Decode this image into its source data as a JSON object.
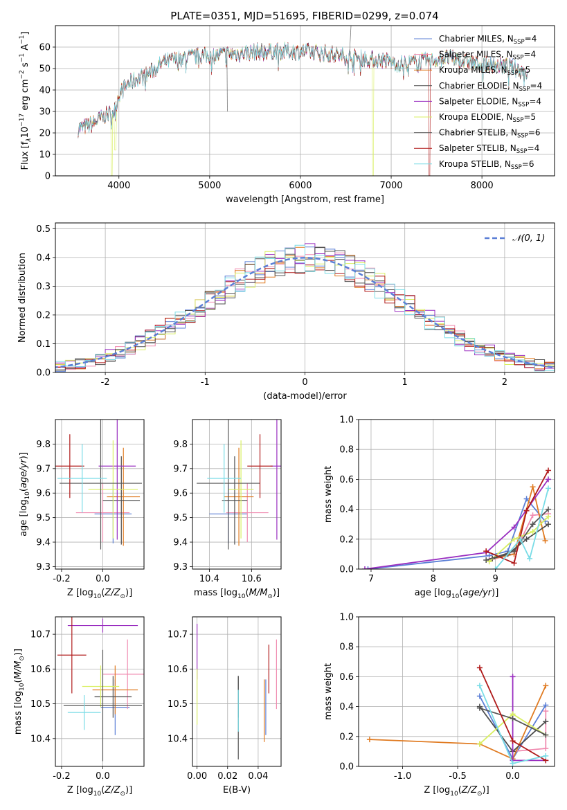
{
  "figure_title": "PLATE=0351, MJD=51695, FIBERID=0299, z=0.074",
  "colors": {
    "Chabrier MILES": "#5b7fd6",
    "Salpeter MILES": "#f08bb0",
    "Kroupa MILES": "#e07b22",
    "Chabrier ELODIE": "#4e4e4e",
    "Salpeter ELODIE": "#9a2fc0",
    "Kroupa ELODIE": "#d9ef62",
    "Chabrier STELIB": "#555555",
    "Salpeter STELIB": "#b01a1a",
    "Kroupa STELIB": "#79dce6"
  },
  "chart_data": [
    {
      "id": "spectrum",
      "type": "line",
      "title": "PLATE=0351, MJD=51695, FIBERID=0299, z=0.074",
      "xlabel": "wavelength [Angstrom, rest frame]",
      "ylabel_main": "Flux [f",
      "ylabel_tail": "10",
      "ylabel_unit": " erg cm",
      "ylabel_unit2": " s",
      "ylabel_unit3": " A",
      "xlim": [
        3300,
        8800
      ],
      "ylim": [
        0,
        70
      ],
      "xticks": [
        4000,
        5000,
        6000,
        7000,
        8000
      ],
      "yticks": [
        0,
        10,
        20,
        30,
        40,
        50,
        60
      ],
      "legend_position": "top-right",
      "legend": [
        {
          "label": "Chabrier MILES, N",
          "n": "4"
        },
        {
          "label": "Salpeter MILES, N",
          "n": "4"
        },
        {
          "label": "Kroupa MILES, N",
          "n": "5"
        },
        {
          "label": "Chabrier ELODIE, N",
          "n": "4"
        },
        {
          "label": "Salpeter ELODIE, N",
          "n": "4"
        },
        {
          "label": "Kroupa ELODIE, N",
          "n": "5"
        },
        {
          "label": "Chabrier STELIB, N",
          "n": "6"
        },
        {
          "label": "Salpeter STELIB, N",
          "n": "4"
        },
        {
          "label": "Kroupa STELIB, N",
          "n": "6"
        }
      ],
      "legend_sub": "SSP",
      "continuum": {
        "x": [
          3550,
          3700,
          3850,
          3950,
          4000,
          4100,
          4300,
          4500,
          4700,
          5000,
          5300,
          5600,
          6000,
          6300,
          6600,
          6900,
          7100,
          7300,
          7600,
          8000,
          8300,
          8500
        ],
        "y": [
          22,
          24,
          28,
          30,
          38,
          43,
          47,
          53,
          55,
          56,
          57,
          58,
          58,
          57,
          55,
          54,
          52,
          53,
          55,
          52,
          51,
          48
        ]
      }
    },
    {
      "id": "residuals",
      "type": "step",
      "xlabel": "(data-model)/error",
      "ylabel": "Normed distribution",
      "xlim": [
        -2.5,
        2.5
      ],
      "ylim": [
        0,
        0.52
      ],
      "xticks": [
        -2,
        -1,
        0,
        1,
        2
      ],
      "yticks": [
        0.0,
        0.1,
        0.2,
        0.3,
        0.4,
        0.5
      ],
      "legend_position": "top-right",
      "legend": [
        "𝒩(0, 1)"
      ],
      "bin_width": 0.1
    },
    {
      "id": "age_vs_Z",
      "type": "errorbar",
      "xlabel": "Z [log",
      "ylabel": "age  [log",
      "xlim": [
        -0.23,
        0.2
      ],
      "ylim": [
        9.29,
        9.9
      ],
      "xticks": [
        -0.2,
        0.0
      ],
      "yticks": [
        9.3,
        9.4,
        9.5,
        9.6,
        9.7,
        9.8
      ],
      "points": [
        {
          "series": "Chabrier MILES",
          "x": 0.05,
          "y": 9.515,
          "xerr": 0.09,
          "yerr": 0.12
        },
        {
          "series": "Salpeter MILES",
          "x": 0.0,
          "y": 9.52,
          "xerr": 0.13,
          "yerr": 0.12
        },
        {
          "series": "Kroupa MILES",
          "x": 0.1,
          "y": 9.585,
          "xerr": 0.08,
          "yerr": 0.2
        },
        {
          "series": "Chabrier ELODIE",
          "x": 0.09,
          "y": 9.57,
          "xerr": 0.09,
          "yerr": 0.18
        },
        {
          "series": "Salpeter ELODIE",
          "x": 0.07,
          "y": 9.71,
          "xerr": 0.09,
          "yerr": 0.3
        },
        {
          "series": "Kroupa ELODIE",
          "x": 0.05,
          "y": 9.615,
          "xerr": 0.12,
          "yerr": 0.2
        },
        {
          "series": "Chabrier STELIB",
          "x": -0.01,
          "y": 9.64,
          "xerr": 0.2,
          "yerr": 0.27
        },
        {
          "series": "Salpeter STELIB",
          "x": -0.16,
          "y": 9.71,
          "xerr": 0.07,
          "yerr": 0.13
        },
        {
          "series": "Kroupa STELIB",
          "x": -0.1,
          "y": 9.66,
          "xerr": 0.12,
          "yerr": 0.14
        }
      ]
    },
    {
      "id": "age_vs_mass",
      "type": "errorbar",
      "xlabel": "mass [log",
      "xlim": [
        10.32,
        10.74
      ],
      "ylim": [
        9.29,
        9.9
      ],
      "xticks": [
        10.4,
        10.6
      ],
      "yticks": [
        9.3,
        9.4,
        9.5,
        9.6,
        9.7,
        9.8
      ],
      "points": [
        {
          "series": "Chabrier MILES",
          "x": 10.49,
          "y": 9.515,
          "xerr": 0.09,
          "yerr": 0.12
        },
        {
          "series": "Salpeter MILES",
          "x": 10.58,
          "y": 9.52,
          "xerr": 0.1,
          "yerr": 0.12
        },
        {
          "series": "Kroupa MILES",
          "x": 10.54,
          "y": 9.585,
          "xerr": 0.07,
          "yerr": 0.2
        },
        {
          "series": "Chabrier ELODIE",
          "x": 10.52,
          "y": 9.57,
          "xerr": 0.06,
          "yerr": 0.18
        },
        {
          "series": "Salpeter ELODIE",
          "x": 10.72,
          "y": 9.71,
          "xerr": 0.03,
          "yerr": 0.3
        },
        {
          "series": "Kroupa ELODIE",
          "x": 10.55,
          "y": 9.615,
          "xerr": 0.06,
          "yerr": 0.2
        },
        {
          "series": "Chabrier STELIB",
          "x": 10.49,
          "y": 9.64,
          "xerr": 0.15,
          "yerr": 0.27
        },
        {
          "series": "Salpeter STELIB",
          "x": 10.64,
          "y": 9.71,
          "xerr": 0.06,
          "yerr": 0.13
        },
        {
          "series": "Kroupa STELIB",
          "x": 10.47,
          "y": 9.66,
          "xerr": 0.08,
          "yerr": 0.14
        }
      ]
    },
    {
      "id": "weight_vs_age",
      "type": "line",
      "xlabel": "age  [log",
      "ylabel": "mass weight",
      "xlim": [
        6.8,
        9.95
      ],
      "ylim": [
        0,
        1.0
      ],
      "xticks": [
        7,
        8,
        9
      ],
      "yticks": [
        0.0,
        0.2,
        0.4,
        0.6,
        0.8,
        1.0
      ],
      "series": [
        {
          "name": "Chabrier MILES",
          "x": [
            6.95,
            8.9,
            9.2,
            9.5,
            9.8
          ],
          "y": [
            0.0,
            0.09,
            0.12,
            0.47,
            0.32
          ]
        },
        {
          "name": "Salpeter MILES",
          "x": [
            8.9,
            9.3,
            9.6,
            9.85
          ],
          "y": [
            0.06,
            0.1,
            0.36,
            0.37
          ]
        },
        {
          "name": "Kroupa MILES",
          "x": [
            8.95,
            9.3,
            9.6,
            9.8
          ],
          "y": [
            0.07,
            0.1,
            0.55,
            0.19
          ]
        },
        {
          "name": "Chabrier ELODIE",
          "x": [
            8.95,
            9.2,
            9.5,
            9.85
          ],
          "y": [
            0.07,
            0.1,
            0.2,
            0.3
          ]
        },
        {
          "name": "Salpeter ELODIE",
          "x": [
            6.9,
            8.85,
            9.3,
            9.85
          ],
          "y": [
            0.0,
            0.11,
            0.28,
            0.6
          ]
        },
        {
          "name": "Kroupa ELODIE",
          "x": [
            8.9,
            9.3,
            9.6,
            9.85
          ],
          "y": [
            0.05,
            0.2,
            0.25,
            0.35
          ]
        },
        {
          "name": "Chabrier STELIB",
          "x": [
            8.85,
            9.3,
            9.6,
            9.85
          ],
          "y": [
            0.06,
            0.12,
            0.3,
            0.4
          ]
        },
        {
          "name": "Salpeter STELIB",
          "x": [
            8.85,
            9.3,
            9.5,
            9.85
          ],
          "y": [
            0.12,
            0.04,
            0.39,
            0.66
          ]
        },
        {
          "name": "Kroupa STELIB",
          "x": [
            9.0,
            9.4,
            9.55,
            9.85
          ],
          "y": [
            0.0,
            0.2,
            0.07,
            0.54
          ]
        }
      ]
    },
    {
      "id": "mass_vs_Z",
      "type": "errorbar",
      "xlabel": "Z [log",
      "ylabel": "mass [log",
      "xlim": [
        -0.23,
        0.2
      ],
      "ylim": [
        10.32,
        10.75
      ],
      "xticks": [
        -0.2,
        0.0
      ],
      "yticks": [
        10.4,
        10.5,
        10.6,
        10.7
      ],
      "points": [
        {
          "series": "Chabrier MILES",
          "x": 0.06,
          "y": 10.49,
          "xerr": 0.07,
          "yerr": 0.08
        },
        {
          "series": "Salpeter MILES",
          "x": 0.12,
          "y": 10.585,
          "xerr": 0.12,
          "yerr": 0.1
        },
        {
          "series": "Kroupa MILES",
          "x": 0.06,
          "y": 10.54,
          "xerr": 0.11,
          "yerr": 0.07
        },
        {
          "series": "Chabrier ELODIE",
          "x": 0.05,
          "y": 10.52,
          "xerr": 0.09,
          "yerr": 0.06
        },
        {
          "series": "Salpeter ELODIE",
          "x": 0.0,
          "y": 10.725,
          "xerr": 0.17,
          "yerr": 0.02
        },
        {
          "series": "Kroupa ELODIE",
          "x": -0.01,
          "y": 10.55,
          "xerr": 0.09,
          "yerr": 0.06
        },
        {
          "series": "Chabrier STELIB",
          "x": 0.0,
          "y": 10.495,
          "xerr": 0.19,
          "yerr": 0.16
        },
        {
          "series": "Salpeter STELIB",
          "x": -0.15,
          "y": 10.64,
          "xerr": 0.07,
          "yerr": 0.11
        },
        {
          "series": "Kroupa STELIB",
          "x": -0.09,
          "y": 10.475,
          "xerr": 0.08,
          "yerr": 0.05
        }
      ]
    },
    {
      "id": "mass_vs_EBV",
      "type": "errorbar",
      "xlabel": "E(B-V)",
      "xlim": [
        -0.003,
        0.055
      ],
      "ylim": [
        10.32,
        10.75
      ],
      "xticks": [
        0.0,
        0.02,
        0.04
      ],
      "yticks": [
        10.4,
        10.5,
        10.6,
        10.7
      ],
      "points": [
        {
          "series": "Chabrier MILES",
          "x": 0.045,
          "y": 10.49,
          "yerr": 0.08
        },
        {
          "series": "Salpeter MILES",
          "x": 0.052,
          "y": 10.585,
          "yerr": 0.1
        },
        {
          "series": "Kroupa MILES",
          "x": 0.044,
          "y": 10.48,
          "yerr": 0.09
        },
        {
          "series": "Chabrier ELODIE",
          "x": 0.027,
          "y": 10.52,
          "yerr": 0.06
        },
        {
          "series": "Salpeter ELODIE",
          "x": 0.0,
          "y": 10.65,
          "yerr": 0.08
        },
        {
          "series": "Kroupa ELODIE",
          "x": 0.0,
          "y": 10.52,
          "yerr": 0.08
        },
        {
          "series": "Chabrier STELIB",
          "x": 0.027,
          "y": 10.46,
          "yerr": 0.12
        },
        {
          "series": "Salpeter STELIB",
          "x": 0.047,
          "y": 10.6,
          "yerr": 0.07
        },
        {
          "series": "Kroupa STELIB",
          "x": 0.027,
          "y": 10.48,
          "yerr": 0.06
        }
      ]
    },
    {
      "id": "weight_vs_Z",
      "type": "line",
      "xlabel": "Z [log",
      "ylabel": "mass weight",
      "xlim": [
        -1.4,
        0.38
      ],
      "ylim": [
        0,
        1.0
      ],
      "xticks": [
        -1.0,
        -0.5,
        0.0
      ],
      "yticks": [
        0.0,
        0.2,
        0.4,
        0.6,
        0.8,
        1.0
      ],
      "series": [
        {
          "name": "Chabrier MILES",
          "x": [
            -0.3,
            0.0,
            0.3
          ],
          "y": [
            0.47,
            0.05,
            0.41
          ]
        },
        {
          "name": "Salpeter MILES",
          "x": [
            0.0,
            0.3,
            0.3
          ],
          "y": [
            0.1,
            0.12,
            0.37
          ]
        },
        {
          "name": "Kroupa MILES",
          "x": [
            -1.3,
            -0.3,
            0.0,
            0.3
          ],
          "y": [
            0.18,
            0.15,
            0.05,
            0.54
          ]
        },
        {
          "name": "Chabrier ELODIE",
          "x": [
            -0.3,
            0.0,
            0.3
          ],
          "y": [
            0.4,
            0.1,
            0.3
          ]
        },
        {
          "name": "Salpeter ELODIE",
          "x": [
            0.0,
            0.0,
            0.3
          ],
          "y": [
            0.6,
            0.04,
            0.04
          ]
        },
        {
          "name": "Kroupa ELODIE",
          "x": [
            -0.3,
            0.0,
            0.3
          ],
          "y": [
            0.15,
            0.35,
            0.21
          ]
        },
        {
          "name": "Chabrier STELIB",
          "x": [
            -0.3,
            0.0,
            0.3
          ],
          "y": [
            0.39,
            0.32,
            0.21
          ]
        },
        {
          "name": "Salpeter STELIB",
          "x": [
            -0.3,
            0.0,
            0.3
          ],
          "y": [
            0.66,
            0.17,
            0.04
          ]
        },
        {
          "name": "Kroupa STELIB",
          "x": [
            -0.3,
            0.0,
            0.3
          ],
          "y": [
            0.54,
            0.02,
            0.07
          ]
        }
      ]
    }
  ]
}
